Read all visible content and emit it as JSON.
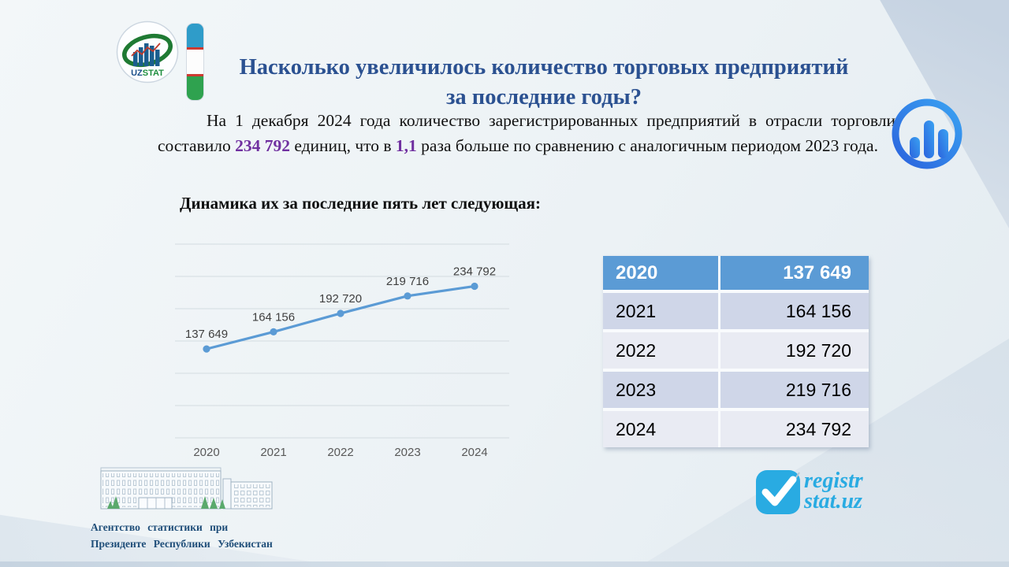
{
  "slide": {
    "title_line1": "Насколько увеличилось количество торговых предприятий",
    "title_line2": "за последние годы?",
    "paragraph": {
      "part1": "На 1 декабря 2024 года количество зарегистрированных предприятий в отрасли торговли составило ",
      "value1": "234 792",
      "part2": " единиц, что в ",
      "value2": "1,1",
      "part3": " раза больше по сравнению с аналогичным периодом 2023 года."
    },
    "section_title": "Динамика их за последние пять лет следующая:"
  },
  "logo": {
    "uz": "UZ",
    "stat": "STAT"
  },
  "chart_data": {
    "type": "line",
    "title": "",
    "x": [
      "2020",
      "2021",
      "2022",
      "2023",
      "2024"
    ],
    "series": [
      {
        "name": "Количество торговых предприятий",
        "values": [
          137649,
          164156,
          192720,
          219716,
          234792
        ]
      }
    ],
    "data_labels": [
      "137 649",
      "164 156",
      "192 720",
      "219 716",
      "234 792"
    ],
    "xlabel": "",
    "ylabel": "",
    "ylim": [
      0,
      300000
    ],
    "gridline_step": 50000,
    "grid": true,
    "legend": false,
    "line_color": "#5B9BD5",
    "label_color": "#404040",
    "axis_label_color": "#595959",
    "gridline_color": "#d3dbe0"
  },
  "table": {
    "header": {
      "year": "2020",
      "value": "137 649"
    },
    "rows": [
      {
        "year": "2021",
        "value": "164 156"
      },
      {
        "year": "2022",
        "value": "192 720"
      },
      {
        "year": "2023",
        "value": "219 716"
      },
      {
        "year": "2024",
        "value": "234 792"
      }
    ]
  },
  "footer": {
    "agency_line1": "Агентство статистики при",
    "agency_line2": "Президенте Республики Узбекистан",
    "registr_line1": "registr",
    "registr_line2": "stat.uz"
  },
  "colors": {
    "title_blue": "#2B5191",
    "highlight_purple": "#7030A0",
    "chart_line_blue": "#5B9BD5",
    "table_header_blue": "#5B9BD5",
    "table_band_dark": "#CFD6E8",
    "table_band_light": "#E9EBF3",
    "registr_cyan": "#29ABE2",
    "agency_text_blue": "#1F4E79"
  }
}
